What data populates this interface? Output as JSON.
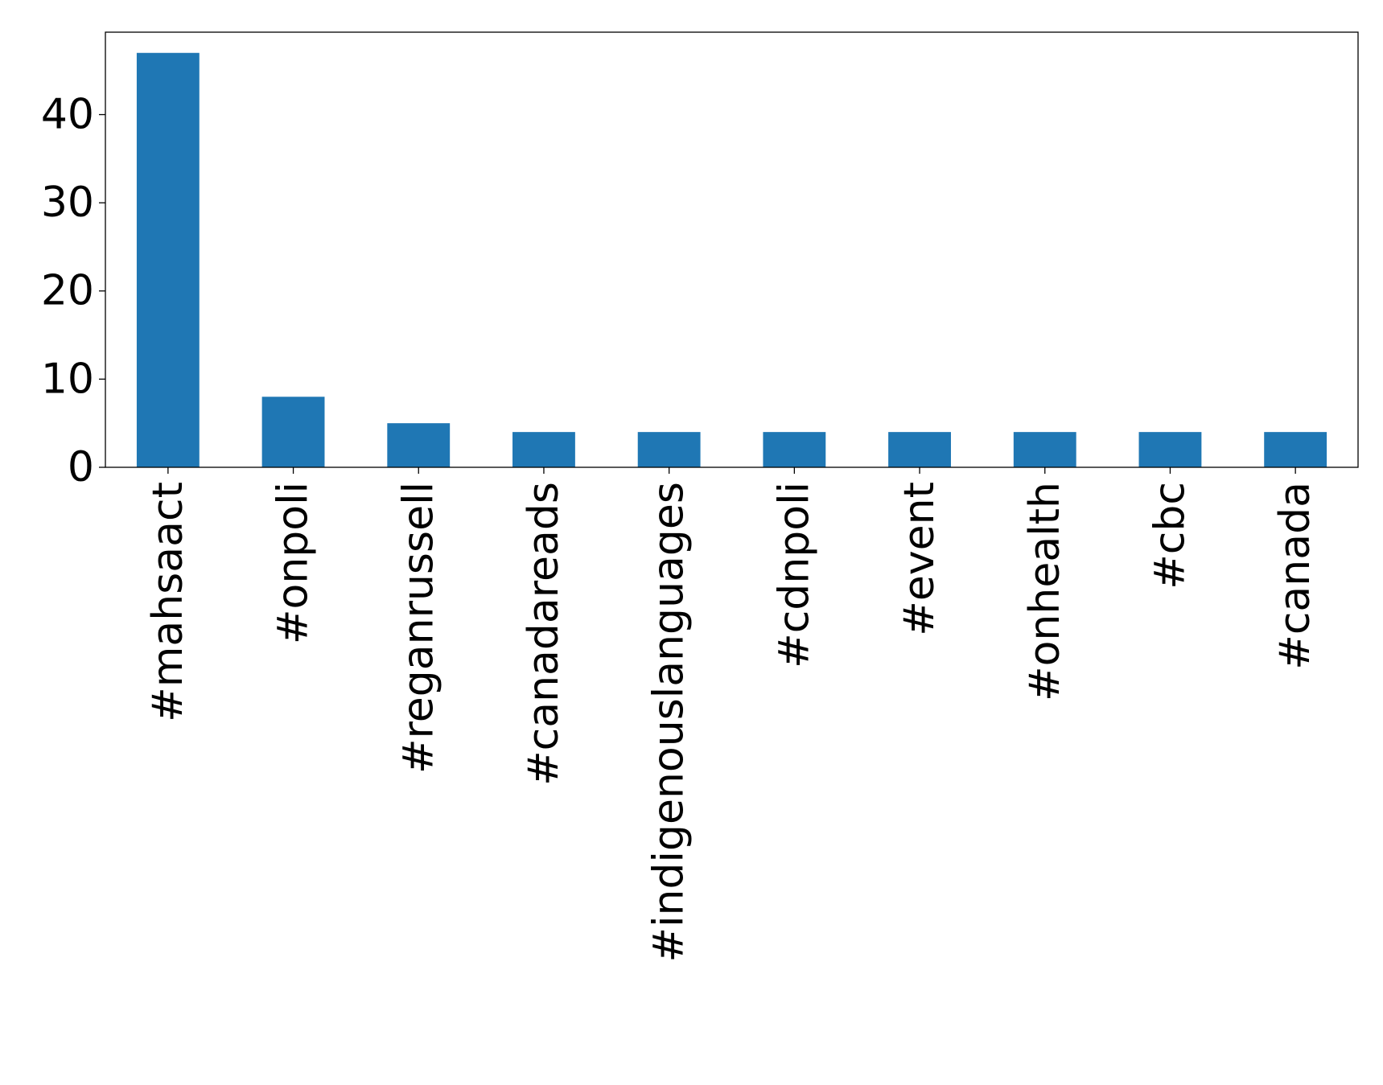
{
  "chart_data": {
    "type": "bar",
    "title": "",
    "xlabel": "",
    "ylabel": "",
    "categories": [
      "#mahsaact",
      "#onpoli",
      "#reganrussell",
      "#canadareads",
      "#indigenouslanguages",
      "#cdnpoli",
      "#event",
      "#onhealth",
      "#cbc",
      "#canada"
    ],
    "values": [
      47,
      8,
      5,
      4,
      4,
      4,
      4,
      4,
      4,
      4
    ],
    "ylim": [
      0,
      49.35
    ],
    "yticks": [
      0,
      10,
      20,
      30,
      40
    ],
    "bar_color": "#1f77b4",
    "grid": false,
    "legend": "none"
  }
}
